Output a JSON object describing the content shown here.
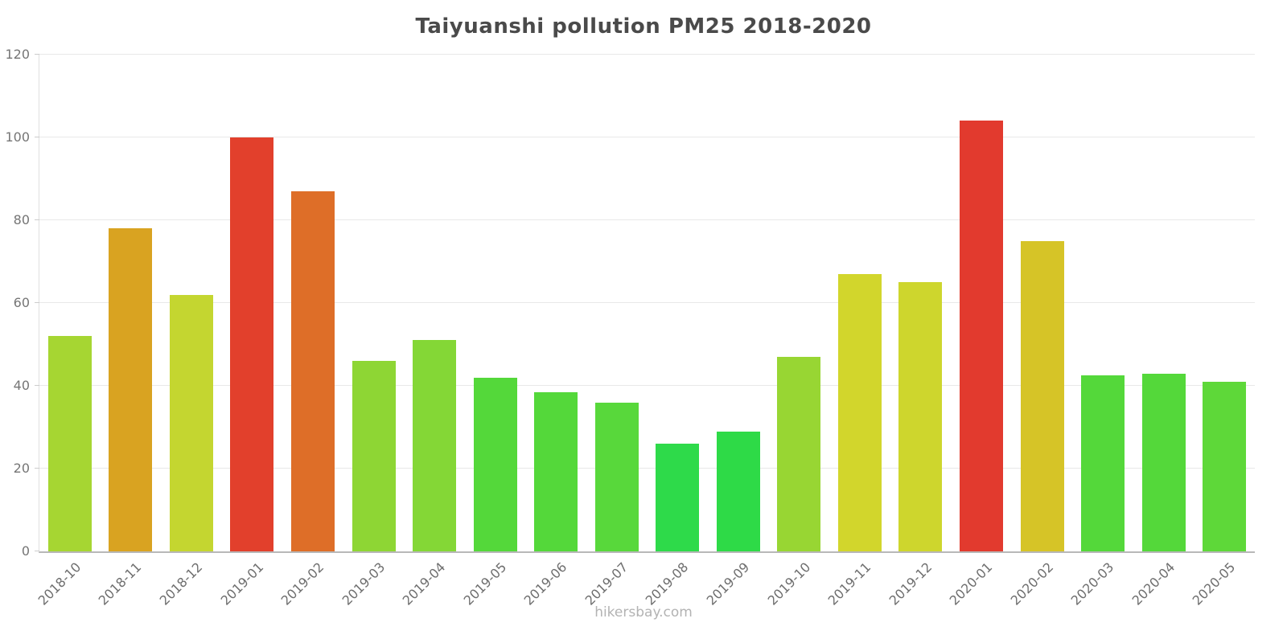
{
  "chart_data": {
    "type": "bar",
    "title": "Taiyuanshi pollution PM25 2018-2020",
    "xlabel": "",
    "ylabel": "",
    "ylim": [
      0,
      120
    ],
    "yticks": [
      0,
      20,
      40,
      60,
      80,
      100,
      120
    ],
    "grid": "horizontal",
    "legend_position": "none",
    "categories": [
      "2018-10",
      "2018-11",
      "2018-12",
      "2019-01",
      "2019-02",
      "2019-03",
      "2019-04",
      "2019-05",
      "2019-06",
      "2019-07",
      "2019-08",
      "2019-09",
      "2019-10",
      "2019-11",
      "2019-12",
      "2020-01",
      "2020-02",
      "2020-03",
      "2020-04",
      "2020-05"
    ],
    "values": [
      52,
      78,
      62,
      100,
      87,
      46,
      51,
      42,
      38.5,
      36,
      26,
      29,
      47,
      67,
      65,
      104,
      75,
      42.5,
      43,
      41
    ],
    "bar_colors": [
      "#a6d632",
      "#d9a321",
      "#c4d630",
      "#e2402c",
      "#de6e28",
      "#8ed634",
      "#84d736",
      "#54d83a",
      "#54d83a",
      "#58d83b",
      "#2eda4a",
      "#2eda47",
      "#98d633",
      "#d2d62c",
      "#ced62d",
      "#e23a2e",
      "#d6c427",
      "#54d83a",
      "#54d83a",
      "#5ed839"
    ]
  },
  "footer": {
    "text": "hikersbay.com"
  },
  "style": {
    "title_color": "#4a4a4a",
    "axis_label_color": "#6e6e6e",
    "gridline_color": "#e8e8e8",
    "axis_line_color": "#b8b8b8",
    "background": "#ffffff",
    "footer_color": "#b3b3b3"
  }
}
